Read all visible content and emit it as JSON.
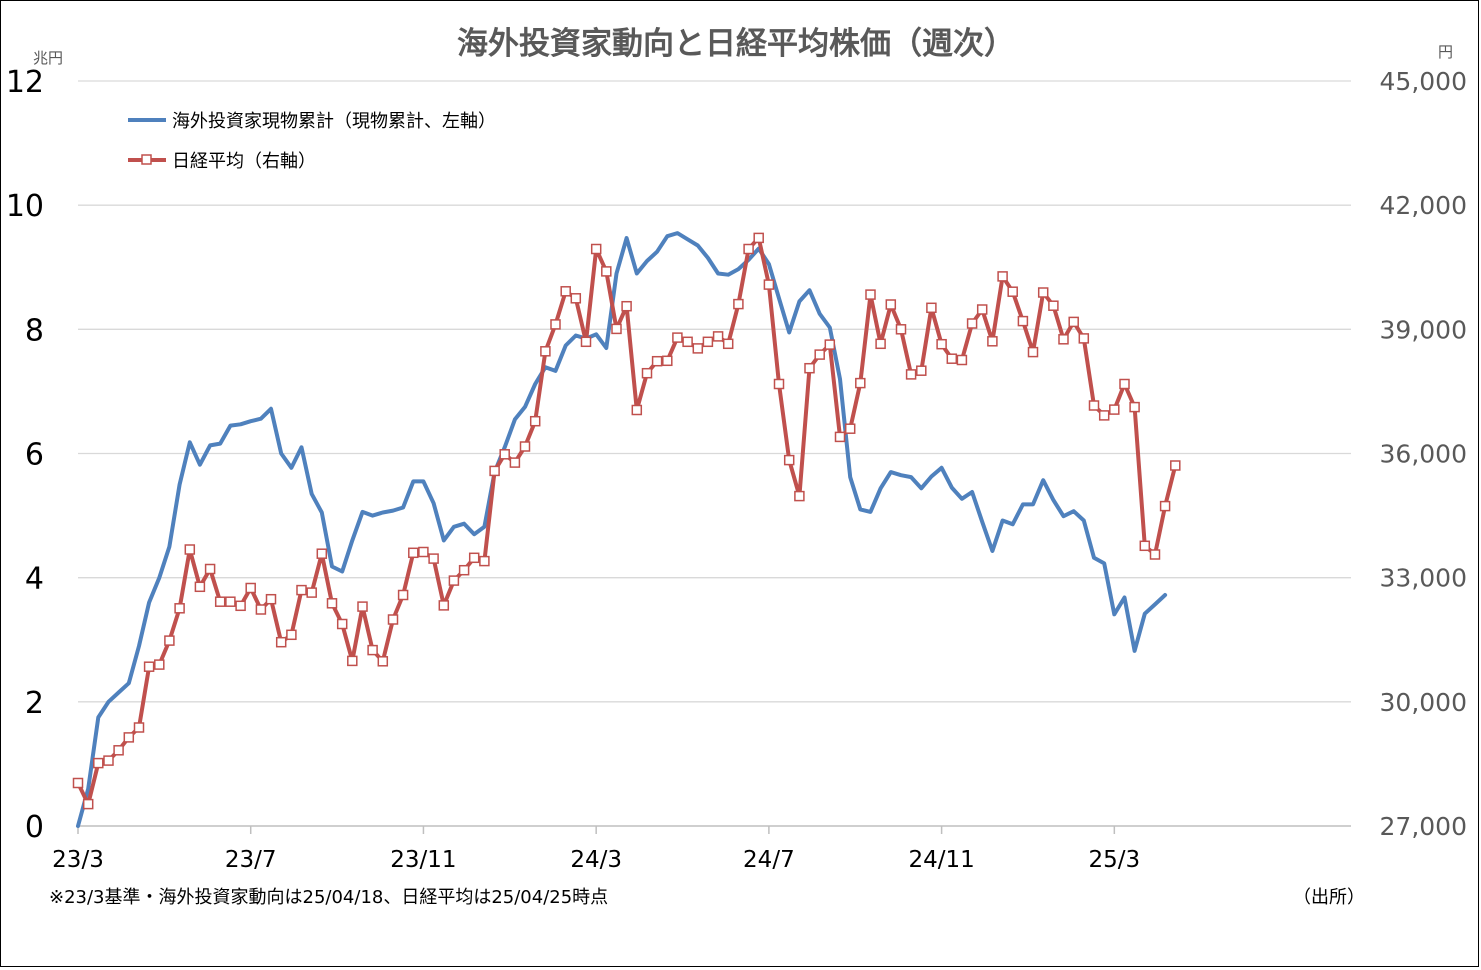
{
  "chart_data": {
    "type": "line",
    "title": "海外投資家動向と日経平均株価（週次）",
    "left_unit": "兆円",
    "right_unit": "円",
    "left_axis": {
      "ylim": [
        0,
        12
      ],
      "ticks": [
        0,
        2,
        4,
        6,
        8,
        10,
        12
      ],
      "tick_labels": [
        "0",
        "2",
        "4",
        "6",
        "8",
        "10",
        "12"
      ]
    },
    "right_axis": {
      "ylim": [
        27000,
        45000
      ],
      "ticks": [
        27000,
        30000,
        33000,
        36000,
        39000,
        42000,
        45000
      ],
      "tick_labels": [
        "27,000",
        "30,000",
        "33,000",
        "36,000",
        "39,000",
        "42,000",
        "45,000"
      ]
    },
    "x_ticks": [
      {
        "index": 0,
        "label": "23/3"
      },
      {
        "index": 17,
        "label": "23/7"
      },
      {
        "index": 34,
        "label": "23/11"
      },
      {
        "index": 51,
        "label": "24/3"
      },
      {
        "index": 68,
        "label": "24/7"
      },
      {
        "index": 85,
        "label": "24/11"
      },
      {
        "index": 102,
        "label": "25/3"
      }
    ],
    "grid": true,
    "legend_position": "top-left",
    "series": [
      {
        "name": "海外投資家現物累計（現物累計、左軸）",
        "axis": "left",
        "color": "#4f81bd",
        "marker": "none",
        "values": [
          0.0,
          0.6,
          1.75,
          2.0,
          2.15,
          2.3,
          2.9,
          3.6,
          4.0,
          4.5,
          5.5,
          6.18,
          5.82,
          6.13,
          6.16,
          6.45,
          6.47,
          6.52,
          6.56,
          6.72,
          6.0,
          5.77,
          6.1,
          5.35,
          5.05,
          4.18,
          4.1,
          4.6,
          5.06,
          5.0,
          5.05,
          5.08,
          5.13,
          5.55,
          5.55,
          5.2,
          4.6,
          4.82,
          4.87,
          4.7,
          4.82,
          5.7,
          6.1,
          6.55,
          6.75,
          7.12,
          7.39,
          7.33,
          7.74,
          7.9,
          7.85,
          7.92,
          7.7,
          8.9,
          9.47,
          8.9,
          9.1,
          9.25,
          9.5,
          9.55,
          9.45,
          9.35,
          9.15,
          8.9,
          8.88,
          8.97,
          9.12,
          9.3,
          9.05,
          8.5,
          7.95,
          8.45,
          8.63,
          8.25,
          8.03,
          7.2,
          5.62,
          5.1,
          5.06,
          5.44,
          5.7,
          5.65,
          5.62,
          5.44,
          5.63,
          5.77,
          5.45,
          5.27,
          5.38,
          4.9,
          4.43,
          4.92,
          4.86,
          5.18,
          5.18,
          5.57,
          5.25,
          4.99,
          5.07,
          4.92,
          4.32,
          4.23,
          3.41,
          3.68,
          2.82,
          3.42,
          3.57,
          3.72
        ]
      },
      {
        "name": "日経平均（右軸）",
        "axis": "right",
        "color": "#c0504d",
        "marker": "hollow-square",
        "values": [
          28040,
          27530,
          28520,
          28580,
          28830,
          29140,
          29380,
          30850,
          30900,
          31480,
          32260,
          33680,
          32780,
          33210,
          32420,
          32420,
          32320,
          32750,
          32230,
          32480,
          31440,
          31620,
          32700,
          32640,
          33580,
          32380,
          31880,
          30990,
          32300,
          31250,
          30980,
          31990,
          32580,
          33600,
          33620,
          33460,
          32330,
          32930,
          33180,
          33480,
          33400,
          35580,
          35980,
          35780,
          36170,
          36780,
          38470,
          39120,
          39920,
          39750,
          38700,
          40940,
          40400,
          39010,
          39560,
          37050,
          37940,
          38230,
          38240,
          38800,
          38700,
          38540,
          38700,
          38830,
          38650,
          39610,
          40940,
          41210,
          40080,
          37680,
          35840,
          34970,
          38060,
          38390,
          38630,
          36400,
          36600,
          37700,
          39840,
          38650,
          39600,
          39000,
          37910,
          38000,
          39520,
          38640,
          38290,
          38260,
          39140,
          39480,
          38710,
          40280,
          39910,
          39200,
          38450,
          39890,
          39570,
          38760,
          39180,
          38780,
          37160,
          36920,
          37060,
          37680,
          37120,
          33770,
          33560,
          34730,
          35710
        ]
      }
    ]
  },
  "note": "※23/3基準・海外投資家動向は25/04/18、日経平均は25/04/25時点",
  "source": "（出所）"
}
